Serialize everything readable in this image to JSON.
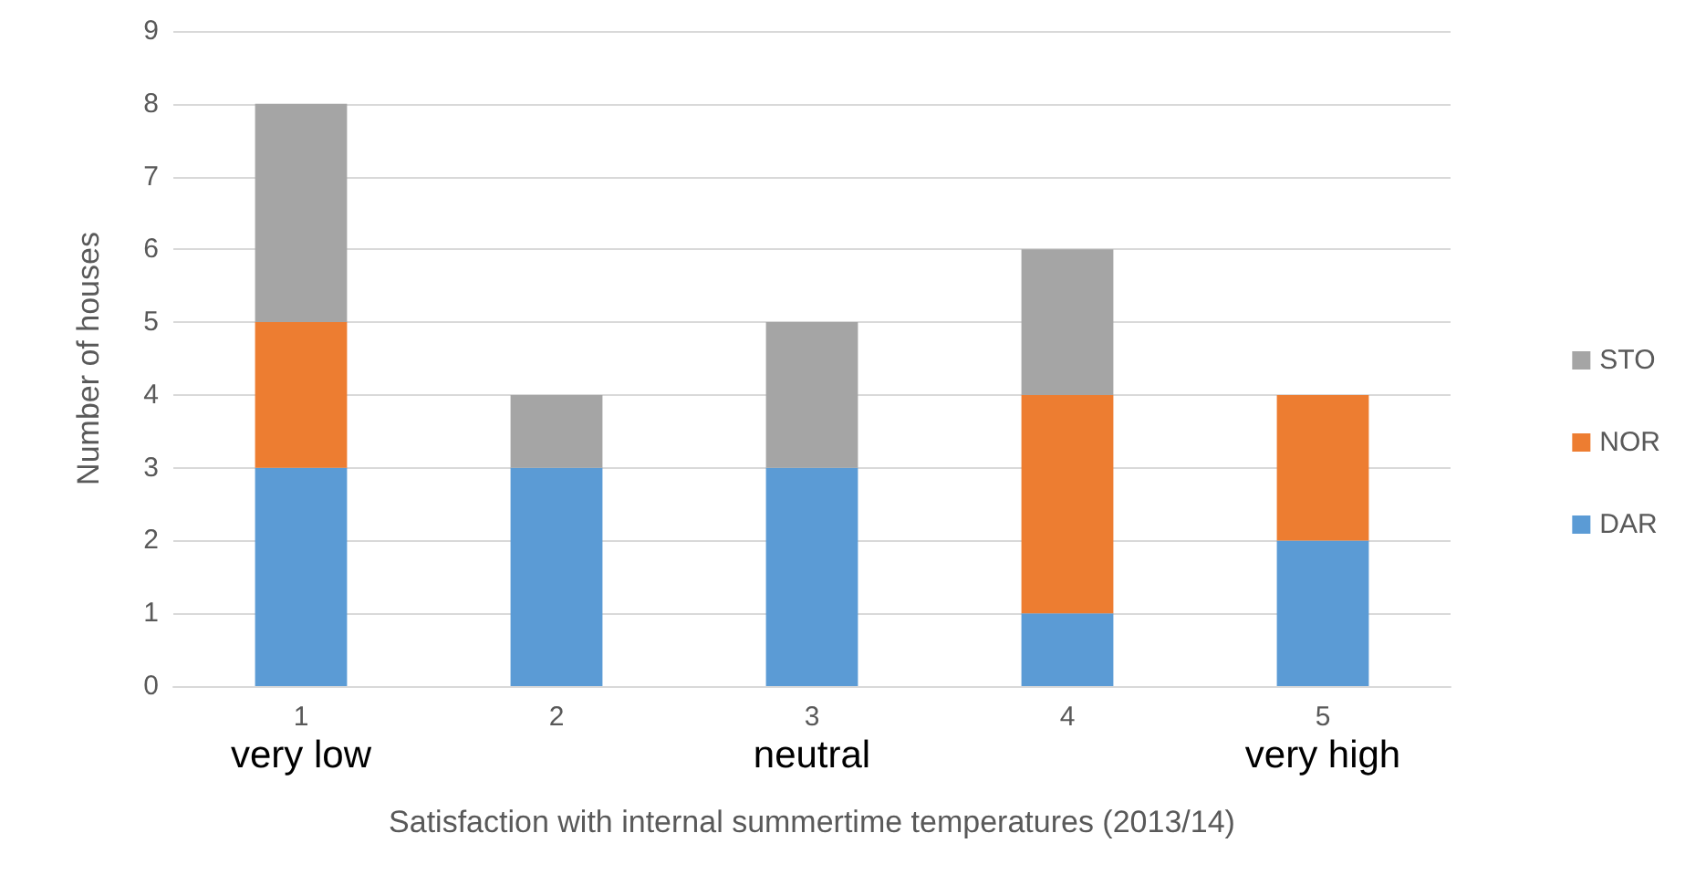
{
  "chart_data": {
    "type": "bar",
    "stacked": true,
    "xlabel": "Satisfaction with internal summertime temperatures (2013/14)",
    "ylabel": "Number of houses",
    "categories": [
      "1\nvery low",
      "2",
      "3\nneutral",
      "4",
      "5\nvery high"
    ],
    "series": [
      {
        "name": "DAR",
        "color": "#5b9bd5",
        "values": [
          3,
          3,
          3,
          1,
          2
        ]
      },
      {
        "name": "NOR",
        "color": "#ed7d31",
        "values": [
          2,
          0,
          0,
          3,
          2
        ]
      },
      {
        "name": "STO",
        "color": "#a5a5a5",
        "values": [
          3,
          1,
          2,
          2,
          0
        ]
      }
    ],
    "ylim": [
      0,
      9
    ],
    "yticks": [
      0,
      1,
      2,
      3,
      4,
      5,
      6,
      7,
      8,
      9
    ],
    "grid": "y",
    "legend": "right"
  }
}
